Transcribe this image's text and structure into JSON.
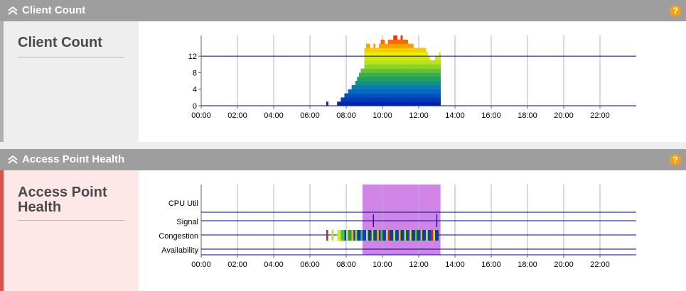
{
  "panels": [
    {
      "title": "Client Count",
      "sidebar_title": "Client Count",
      "help": "?"
    },
    {
      "title": "Access Point Health",
      "sidebar_title": "Access Point Health",
      "help": "?"
    }
  ],
  "colors": {
    "header_bg": "#9e9e9e",
    "client_side_bg": "#eeeeee",
    "client_side_bar": "#b0b0b0",
    "ap_side_bg": "#fde7e7",
    "ap_side_bar": "#d9534f",
    "axis_line": "#00008b",
    "grid": "#b0b0c8",
    "highlight": "#cf84e6",
    "help_badge": "#f1a21a"
  },
  "chart_data": [
    {
      "type": "bar",
      "title": "",
      "xlabel": "",
      "ylabel": "",
      "x_ticks": [
        "00:00",
        "02:00",
        "04:00",
        "06:00",
        "08:00",
        "10:00",
        "12:00",
        "14:00",
        "16:00",
        "18:00",
        "20:00",
        "22:00"
      ],
      "y_ticks": [
        "0",
        "4",
        "8",
        "12"
      ],
      "ylim": [
        0,
        17
      ],
      "xlim_hours": [
        0,
        24
      ],
      "reference_line": 12,
      "x_hours": [
        6.9,
        7.0,
        7.1,
        7.2,
        7.3,
        7.4,
        7.5,
        7.6,
        7.7,
        7.8,
        7.9,
        8.0,
        8.1,
        8.2,
        8.3,
        8.4,
        8.5,
        8.6,
        8.7,
        8.8,
        8.9,
        9.0,
        9.1,
        9.2,
        9.3,
        9.4,
        9.5,
        9.6,
        9.7,
        9.8,
        9.9,
        10.0,
        10.1,
        10.2,
        10.3,
        10.4,
        10.5,
        10.6,
        10.7,
        10.8,
        10.9,
        11.0,
        11.1,
        11.2,
        11.3,
        11.4,
        11.5,
        11.6,
        11.7,
        11.8,
        11.9,
        12.0,
        12.1,
        12.2,
        12.3,
        12.4,
        12.5,
        12.6,
        12.7,
        12.8,
        12.9,
        13.0,
        13.1
      ],
      "values": [
        1,
        0,
        0,
        0,
        0,
        0,
        1,
        1,
        2,
        2,
        3,
        3,
        4,
        4,
        5,
        5,
        6,
        7,
        8,
        9,
        9,
        14,
        15,
        15,
        14,
        14,
        15,
        14,
        14,
        15,
        16,
        16,
        15,
        15,
        16,
        16,
        16,
        17,
        17,
        16,
        16,
        17,
        16,
        16,
        16,
        15,
        15,
        15,
        14,
        14,
        14,
        14,
        14,
        14,
        14,
        13,
        12,
        11,
        11,
        11,
        12,
        12,
        13
      ]
    },
    {
      "type": "table",
      "title": "",
      "x_ticks": [
        "00:00",
        "02:00",
        "04:00",
        "06:00",
        "08:00",
        "10:00",
        "12:00",
        "14:00",
        "16:00",
        "18:00",
        "20:00",
        "22:00"
      ],
      "rows": [
        "CPU Util",
        "Signal",
        "Congestion",
        "Availability"
      ],
      "highlight_hours": [
        8.9,
        13.2
      ],
      "signal_marks_hours": [
        9.5,
        13.0
      ],
      "congestion_segments": [
        {
          "start": 6.9,
          "end": 7.0,
          "color": "#d62020"
        },
        {
          "start": 7.2,
          "end": 7.3,
          "color": "#a9e53a"
        },
        {
          "start": 7.5,
          "end": 7.7,
          "color": "#c4f03c"
        },
        {
          "start": 7.7,
          "end": 7.9,
          "color": "#4fc23c"
        },
        {
          "start": 7.9,
          "end": 8.0,
          "color": "#1a3fa8"
        },
        {
          "start": 8.0,
          "end": 8.1,
          "color": "#e3e02a"
        },
        {
          "start": 8.1,
          "end": 8.3,
          "color": "#2e9a48"
        },
        {
          "start": 8.3,
          "end": 8.4,
          "color": "#f0b020"
        },
        {
          "start": 8.4,
          "end": 8.5,
          "color": "#1a3fa8"
        },
        {
          "start": 8.5,
          "end": 8.6,
          "color": "#8ed83a"
        },
        {
          "start": 8.6,
          "end": 8.8,
          "color": "#163c8c"
        },
        {
          "start": 8.8,
          "end": 8.9,
          "color": "#2fb5a0"
        },
        {
          "start": 8.9,
          "end": 9.1,
          "color": "#1a3fa8"
        },
        {
          "start": 9.1,
          "end": 9.2,
          "color": "#e3e02a"
        },
        {
          "start": 9.2,
          "end": 9.4,
          "color": "#163c8c"
        },
        {
          "start": 9.4,
          "end": 9.5,
          "color": "#a9e53a"
        },
        {
          "start": 9.5,
          "end": 9.7,
          "color": "#1a3fa8"
        },
        {
          "start": 9.7,
          "end": 9.8,
          "color": "#f0b020"
        },
        {
          "start": 9.8,
          "end": 9.9,
          "color": "#163c8c"
        },
        {
          "start": 9.9,
          "end": 10.0,
          "color": "#4fc23c"
        },
        {
          "start": 10.0,
          "end": 10.2,
          "color": "#1a3fa8"
        },
        {
          "start": 10.2,
          "end": 10.3,
          "color": "#e3e02a"
        },
        {
          "start": 10.3,
          "end": 10.4,
          "color": "#d62020"
        },
        {
          "start": 10.4,
          "end": 10.6,
          "color": "#163c8c"
        },
        {
          "start": 10.6,
          "end": 10.7,
          "color": "#c4f03c"
        },
        {
          "start": 10.7,
          "end": 10.9,
          "color": "#1a3fa8"
        },
        {
          "start": 10.9,
          "end": 11.0,
          "color": "#f0b020"
        },
        {
          "start": 11.0,
          "end": 11.2,
          "color": "#163c8c"
        },
        {
          "start": 11.2,
          "end": 11.3,
          "color": "#a9e53a"
        },
        {
          "start": 11.3,
          "end": 11.5,
          "color": "#1a3fa8"
        },
        {
          "start": 11.5,
          "end": 11.6,
          "color": "#e3e02a"
        },
        {
          "start": 11.6,
          "end": 11.8,
          "color": "#163c8c"
        },
        {
          "start": 11.8,
          "end": 11.9,
          "color": "#4fc23c"
        },
        {
          "start": 11.9,
          "end": 12.1,
          "color": "#1a3fa8"
        },
        {
          "start": 12.1,
          "end": 12.2,
          "color": "#f0b020"
        },
        {
          "start": 12.2,
          "end": 12.4,
          "color": "#163c8c"
        },
        {
          "start": 12.4,
          "end": 12.5,
          "color": "#c4f03c"
        },
        {
          "start": 12.5,
          "end": 12.7,
          "color": "#1a3fa8"
        },
        {
          "start": 12.7,
          "end": 12.8,
          "color": "#d62020"
        },
        {
          "start": 12.8,
          "end": 12.9,
          "color": "#e3e02a"
        },
        {
          "start": 12.9,
          "end": 13.1,
          "color": "#163c8c"
        }
      ]
    }
  ]
}
